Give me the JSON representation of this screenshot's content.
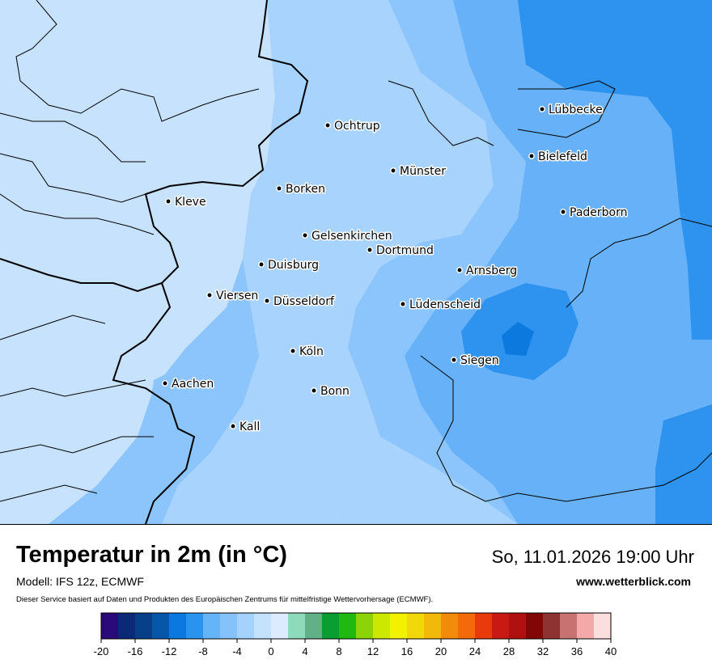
{
  "title": "Temperatur in 2m (in °C)",
  "datetime": "So, 11.01.2026 19:00 Uhr",
  "model": "Modell: IFS 12z, ECMWF",
  "website": "www.wetterblick.com",
  "disclaimer": "Dieser Service basiert auf Daten und Produkten des Europäischen Zentrums für mittelfristige Wettervorhersage (ECMWF).",
  "cities": [
    {
      "name": "Lübbecke"
    },
    {
      "name": "Ochtrup"
    },
    {
      "name": "Bielefeld"
    },
    {
      "name": "Münster"
    },
    {
      "name": "Borken"
    },
    {
      "name": "Kleve"
    },
    {
      "name": "Paderborn"
    },
    {
      "name": "Gelsenkirchen"
    },
    {
      "name": "Dortmund"
    },
    {
      "name": "Duisburg"
    },
    {
      "name": "Arnsberg"
    },
    {
      "name": "Viersen"
    },
    {
      "name": "Düsseldorf"
    },
    {
      "name": "Lüdenscheid"
    },
    {
      "name": "Köln"
    },
    {
      "name": "Siegen"
    },
    {
      "name": "Aachen"
    },
    {
      "name": "Bonn"
    },
    {
      "name": "Kall"
    }
  ],
  "legend": {
    "ticks": [
      "-20",
      "-16",
      "-12",
      "-8",
      "-4",
      "0",
      "4",
      "8",
      "12",
      "16",
      "20",
      "24",
      "28",
      "32",
      "36",
      "40"
    ],
    "colors": [
      "#2a0a78",
      "#0a2a78",
      "#073f88",
      "#0656aa",
      "#0a78de",
      "#2a93ee",
      "#64b4f8",
      "#86c2fa",
      "#a5d2fc",
      "#c4e1fd",
      "#dcecfe",
      "#8edbbb",
      "#62b08a",
      "#0a9e32",
      "#22b812",
      "#8cd408",
      "#cce800",
      "#f2f200",
      "#f2d80a",
      "#f2b80a",
      "#f28a0a",
      "#f26a0a",
      "#e83a0a",
      "#c81a12",
      "#b01010",
      "#820606",
      "#8e3232",
      "#c87272",
      "#f4a8a8",
      "#fcdede"
    ]
  }
}
